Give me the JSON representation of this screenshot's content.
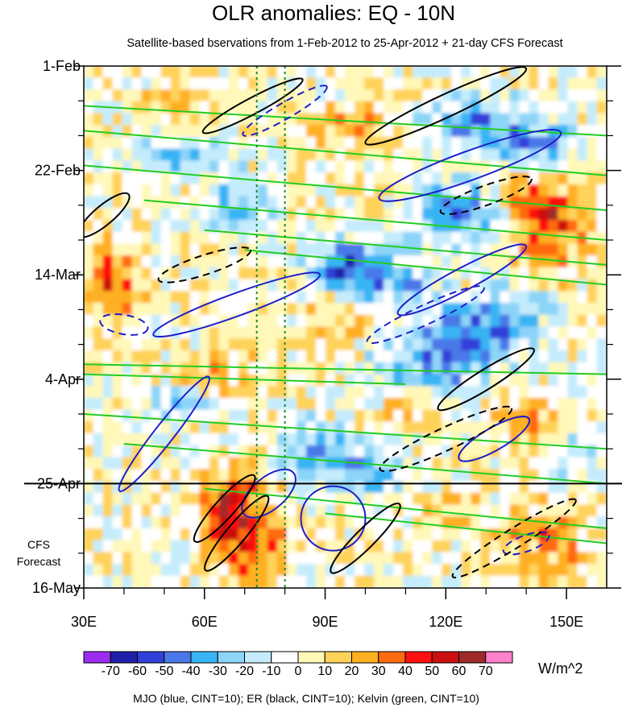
{
  "chart_data": {
    "type": "heatmap",
    "title": "OLR anomalies: EQ - 10N",
    "subtitle": "Satellite-based bservations from 1-Feb-2012 to 25-Apr-2012 + 21-day CFS Forecast",
    "x_ticks": [
      {
        "value": 30,
        "label": "30E"
      },
      {
        "value": 60,
        "label": "60E"
      },
      {
        "value": 90,
        "label": "90E"
      },
      {
        "value": 120,
        "label": "120E"
      },
      {
        "value": 150,
        "label": "150E"
      }
    ],
    "xlim": [
      30,
      160
    ],
    "y_ticks": [
      {
        "value": 0,
        "label": "1-Feb"
      },
      {
        "value": 21,
        "label": "22-Feb"
      },
      {
        "value": 42,
        "label": "14-Mar"
      },
      {
        "value": 63,
        "label": "4-Apr"
      },
      {
        "value": 84,
        "label": "25-Apr"
      },
      {
        "value": 105,
        "label": "16-May"
      }
    ],
    "ylim_days": [
      0,
      105
    ],
    "forecast_start_day": 84,
    "forecast_label_line1": "CFS",
    "forecast_label_line2": "Forecast",
    "reference_longitudes": [
      73,
      80
    ],
    "colorbar": {
      "unit": "W/m^2",
      "levels": [
        -70,
        -60,
        -50,
        -40,
        -30,
        -20,
        -10,
        0,
        10,
        20,
        30,
        40,
        50,
        60,
        70
      ],
      "labels": [
        "-70",
        "-60",
        "-50",
        "-40",
        "-30",
        "-20",
        "-10",
        "0",
        "10",
        "20",
        "30",
        "40",
        "50",
        "60",
        "70"
      ],
      "colors": [
        "#9a2ef0",
        "#2020a8",
        "#3040d8",
        "#4a78e8",
        "#38b4f4",
        "#8cd4f8",
        "#c4ecfc",
        "#ffffff",
        "#fff8b8",
        "#ffd25a",
        "#ffb020",
        "#ff6a10",
        "#ff1010",
        "#cc1010",
        "#a02a2a",
        "#ff80cc"
      ]
    },
    "contours": [
      {
        "name": "MJO",
        "color": "blue"
      },
      {
        "name": "ER",
        "color": "black"
      },
      {
        "name": "Kelvin",
        "color": "green"
      }
    ],
    "footnote": "MJO (blue, CINT=10); ER (black, CINT=10); Kelvin (green, CINT=10)"
  }
}
